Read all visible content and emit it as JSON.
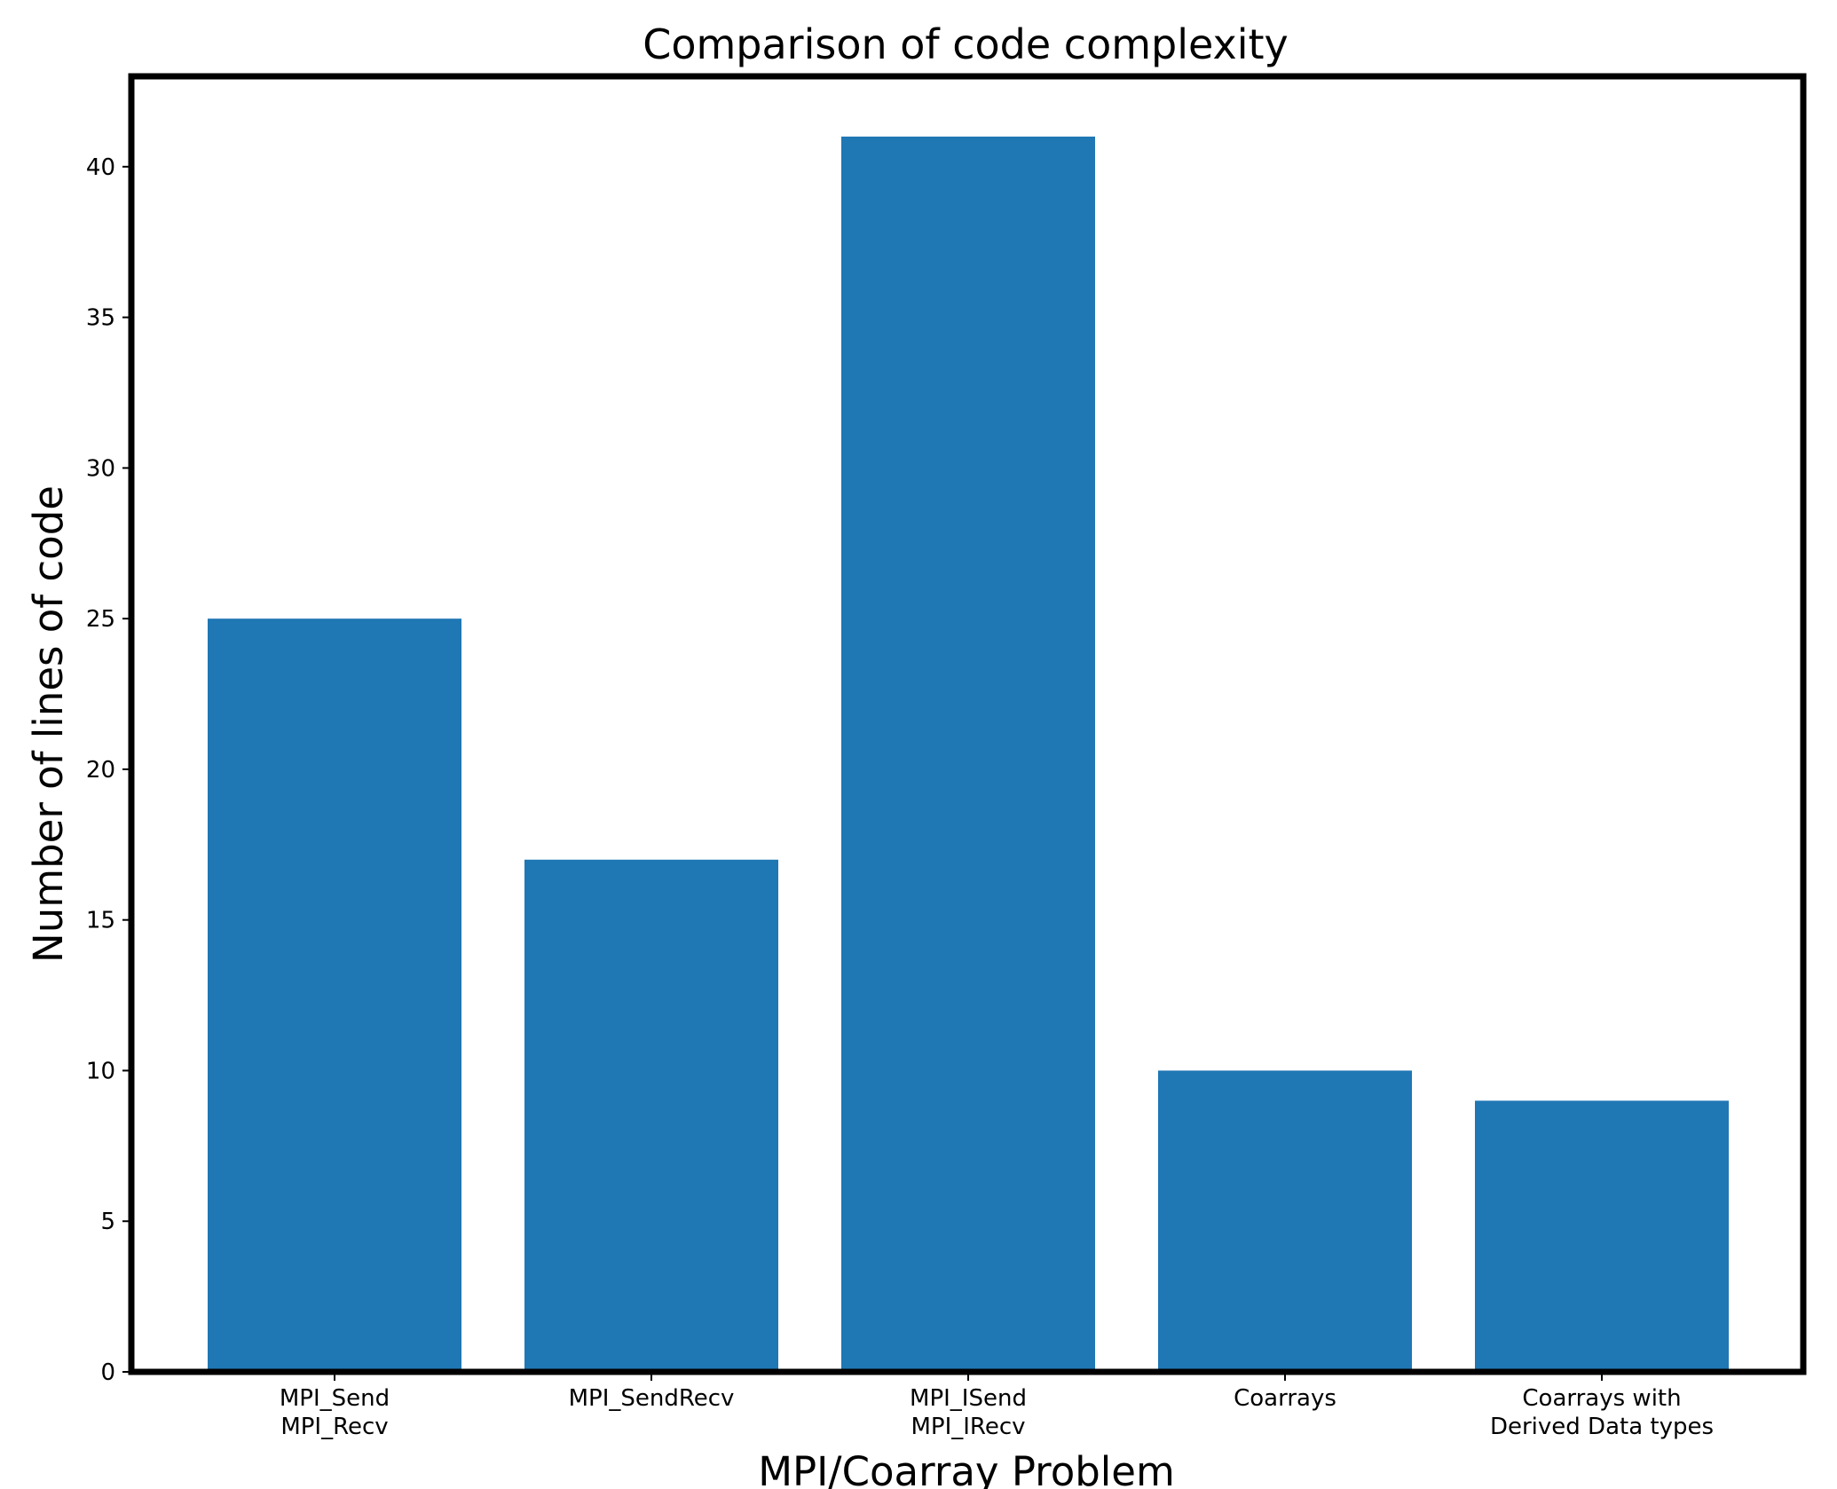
{
  "chart_data": {
    "type": "bar",
    "title": "Comparison of code complexity",
    "xlabel": "MPI/Coarray Problem",
    "ylabel": "Number of lines of code",
    "categories": [
      [
        "MPI_Send",
        "MPI_Recv"
      ],
      [
        "MPI_SendRecv"
      ],
      [
        "MPI_ISend",
        "MPI_IRecv"
      ],
      [
        "Coarrays"
      ],
      [
        "Coarrays with",
        "Derived Data types"
      ]
    ],
    "values": [
      25,
      17,
      41,
      10,
      9
    ],
    "ylim": [
      0,
      43
    ],
    "yticks": [
      0,
      5,
      10,
      15,
      20,
      25,
      30,
      35,
      40
    ],
    "bar_color": "#1f77b4",
    "grid": false,
    "legend": "none"
  }
}
